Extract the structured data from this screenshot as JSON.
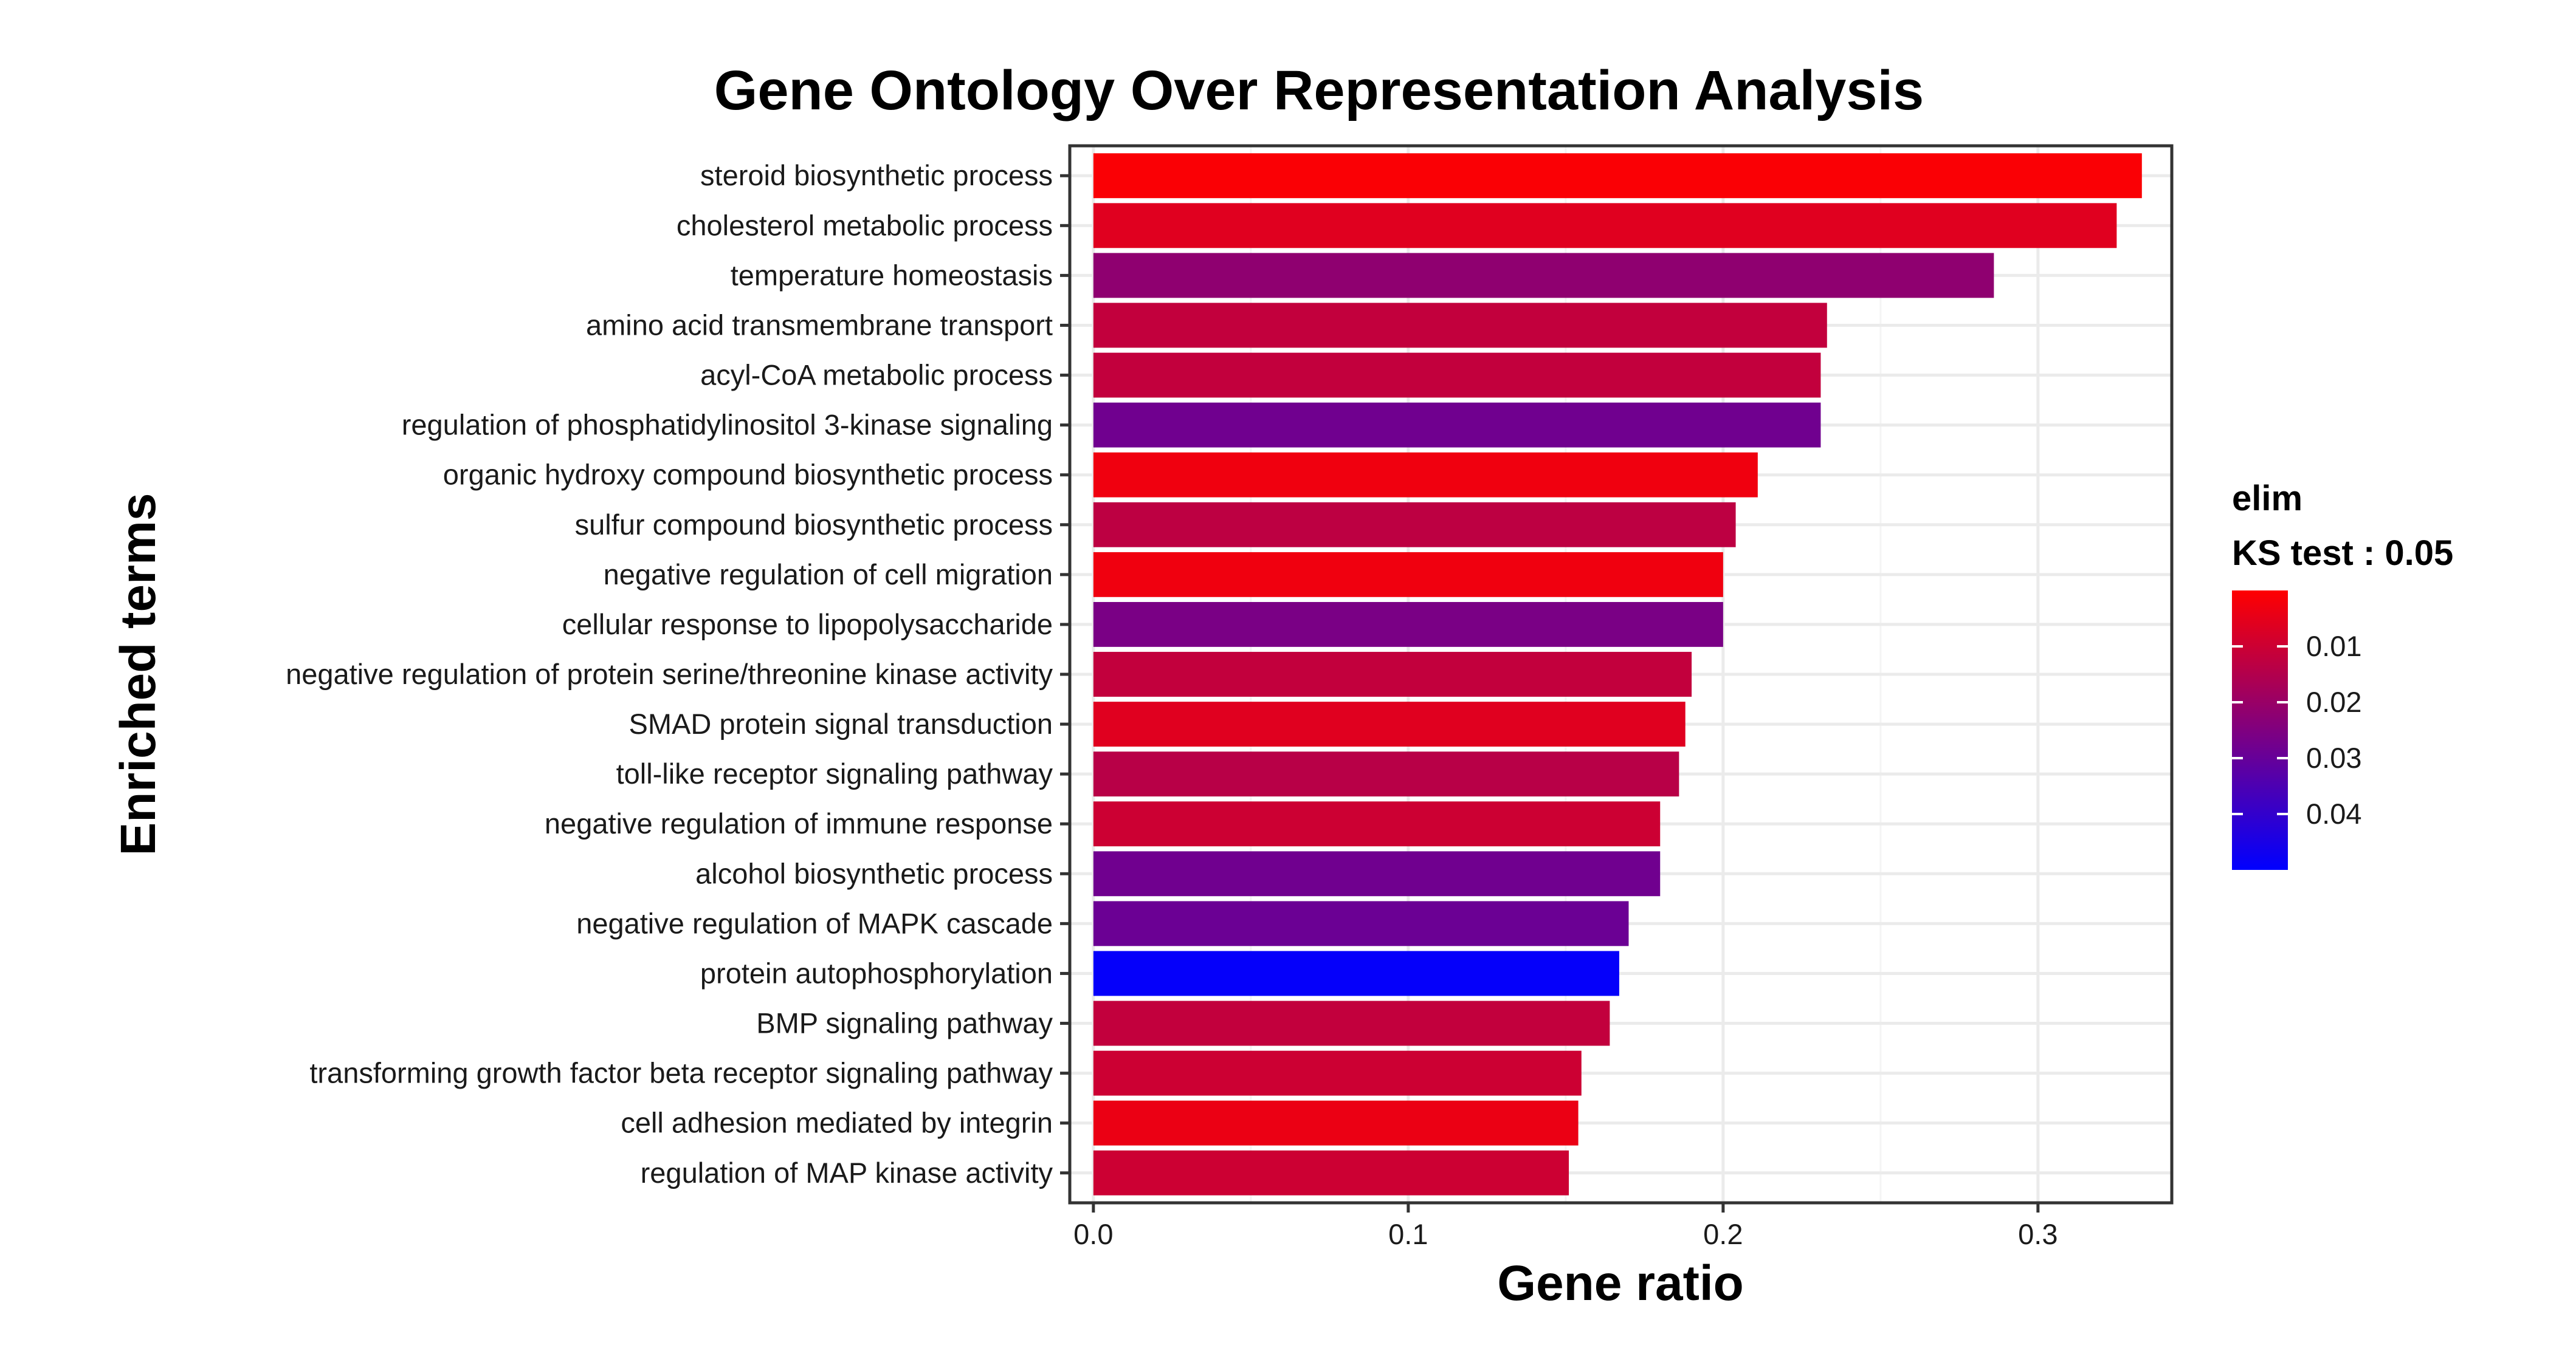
{
  "chart_data": {
    "type": "bar",
    "orientation": "horizontal",
    "title": "Gene Ontology Over Representation Analysis",
    "xlabel": "Gene ratio",
    "ylabel": "Enriched terms",
    "xlim": [
      -0.0075,
      0.3425
    ],
    "xticks": [
      0.0,
      0.1,
      0.2,
      0.3
    ],
    "xtick_labels": [
      "0.0",
      "0.1",
      "0.2",
      "0.3"
    ],
    "grid": true,
    "categories": [
      "steroid biosynthetic process",
      "cholesterol metabolic process",
      "temperature homeostasis",
      "amino acid transmembrane transport",
      "acyl-CoA metabolic process",
      "regulation of phosphatidylinositol 3-kinase signaling",
      "organic hydroxy compound biosynthetic process",
      "sulfur compound biosynthetic process",
      "negative regulation of cell migration",
      "cellular response to lipopolysaccharide",
      "negative regulation of protein serine/threonine kinase activity",
      "SMAD protein signal transduction",
      "toll-like receptor signaling pathway",
      "negative regulation of immune response",
      "alcohol biosynthetic process",
      "negative regulation of MAPK cascade",
      "protein autophosphorylation",
      "BMP signaling pathway",
      "transforming growth factor beta receptor signaling pathway",
      "cell adhesion mediated by integrin",
      "regulation of MAP kinase activity"
    ],
    "values": [
      0.333,
      0.325,
      0.286,
      0.233,
      0.231,
      0.231,
      0.211,
      0.204,
      0.2,
      0.2,
      0.19,
      0.188,
      0.186,
      0.18,
      0.18,
      0.17,
      0.167,
      0.164,
      0.155,
      0.154,
      0.151
    ],
    "pvalues": [
      0.001,
      0.006,
      0.022,
      0.012,
      0.012,
      0.028,
      0.003,
      0.013,
      0.003,
      0.026,
      0.012,
      0.006,
      0.014,
      0.01,
      0.028,
      0.029,
      0.049,
      0.012,
      0.01,
      0.004,
      0.01
    ],
    "legend": {
      "title_line1": "elim",
      "title_line2": "KS test : 0.05",
      "ticks": [
        0.01,
        0.02,
        0.03,
        0.04
      ],
      "tick_labels": [
        "0.01",
        "0.02",
        "0.03",
        "0.04"
      ],
      "range": [
        0.0,
        0.05
      ],
      "color_low_p": "#ff0000",
      "color_high_p": "#0000ff",
      "placement": "right"
    },
    "colors": {
      "panel_border": "#333333",
      "grid_major": "#ebebeb",
      "grid_minor": "#f4f4f4",
      "tick_mark": "#333333"
    }
  }
}
